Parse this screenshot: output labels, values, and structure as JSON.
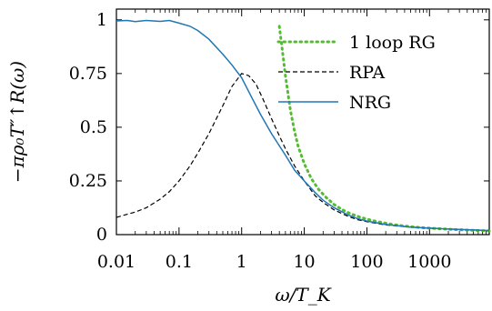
{
  "chart_data": {
    "type": "line",
    "title": "",
    "xlabel": "ω/T_K",
    "ylabel": "−πρ₀T″↑R(ω)",
    "x_scale": "log",
    "xlim": [
      0.01,
      9000
    ],
    "ylim": [
      0,
      1.05
    ],
    "x_ticks": [
      0.01,
      0.1,
      1,
      10,
      100,
      1000
    ],
    "x_tick_labels": [
      "0.01",
      "0.1",
      "1",
      "10",
      "100",
      "1000"
    ],
    "y_ticks": [
      0,
      0.25,
      0.5,
      0.75,
      1
    ],
    "y_tick_labels": [
      "0",
      "0.25",
      "0.5",
      "0.75",
      "1"
    ],
    "grid": false,
    "legend_position": "top-right",
    "series": [
      {
        "name": "1 loop RG",
        "color": "#55bb33",
        "style": "dotted",
        "x": [
          4.0,
          4.5,
          5,
          6,
          7,
          8,
          10,
          13,
          17,
          22,
          30,
          40,
          55,
          75,
          100,
          150,
          250,
          400,
          700,
          1000,
          2000,
          4000,
          9000
        ],
        "y": [
          0.97,
          0.85,
          0.74,
          0.58,
          0.48,
          0.41,
          0.33,
          0.26,
          0.21,
          0.175,
          0.14,
          0.117,
          0.097,
          0.083,
          0.072,
          0.06,
          0.048,
          0.04,
          0.033,
          0.03,
          0.025,
          0.021,
          0.017
        ]
      },
      {
        "name": "RPA",
        "color": "#000000",
        "style": "dashed",
        "x": [
          0.01,
          0.015,
          0.02,
          0.03,
          0.05,
          0.07,
          0.1,
          0.15,
          0.2,
          0.3,
          0.5,
          0.7,
          1.0,
          1.3,
          1.7,
          2.2,
          3,
          4,
          5,
          7,
          10,
          15,
          20,
          30,
          50,
          70,
          100,
          200,
          500,
          1000,
          3000,
          9000
        ],
        "y": [
          0.08,
          0.095,
          0.105,
          0.125,
          0.165,
          0.2,
          0.25,
          0.32,
          0.38,
          0.47,
          0.6,
          0.69,
          0.75,
          0.74,
          0.7,
          0.63,
          0.54,
          0.46,
          0.4,
          0.32,
          0.25,
          0.18,
          0.15,
          0.115,
          0.085,
          0.07,
          0.06,
          0.045,
          0.035,
          0.03,
          0.024,
          0.019
        ]
      },
      {
        "name": "NRG",
        "color": "#1f77b4",
        "style": "solid",
        "x": [
          0.01,
          0.015,
          0.02,
          0.03,
          0.05,
          0.07,
          0.1,
          0.15,
          0.2,
          0.3,
          0.5,
          0.7,
          1.0,
          1.5,
          2,
          3,
          5,
          7,
          10,
          15,
          20,
          30,
          50,
          70,
          100,
          200,
          500,
          1000,
          3000,
          9000
        ],
        "y": [
          0.995,
          0.997,
          0.992,
          0.997,
          0.993,
          0.997,
          0.985,
          0.97,
          0.95,
          0.91,
          0.84,
          0.79,
          0.73,
          0.63,
          0.56,
          0.47,
          0.37,
          0.3,
          0.25,
          0.195,
          0.16,
          0.125,
          0.092,
          0.075,
          0.063,
          0.047,
          0.035,
          0.03,
          0.024,
          0.019
        ]
      }
    ]
  }
}
